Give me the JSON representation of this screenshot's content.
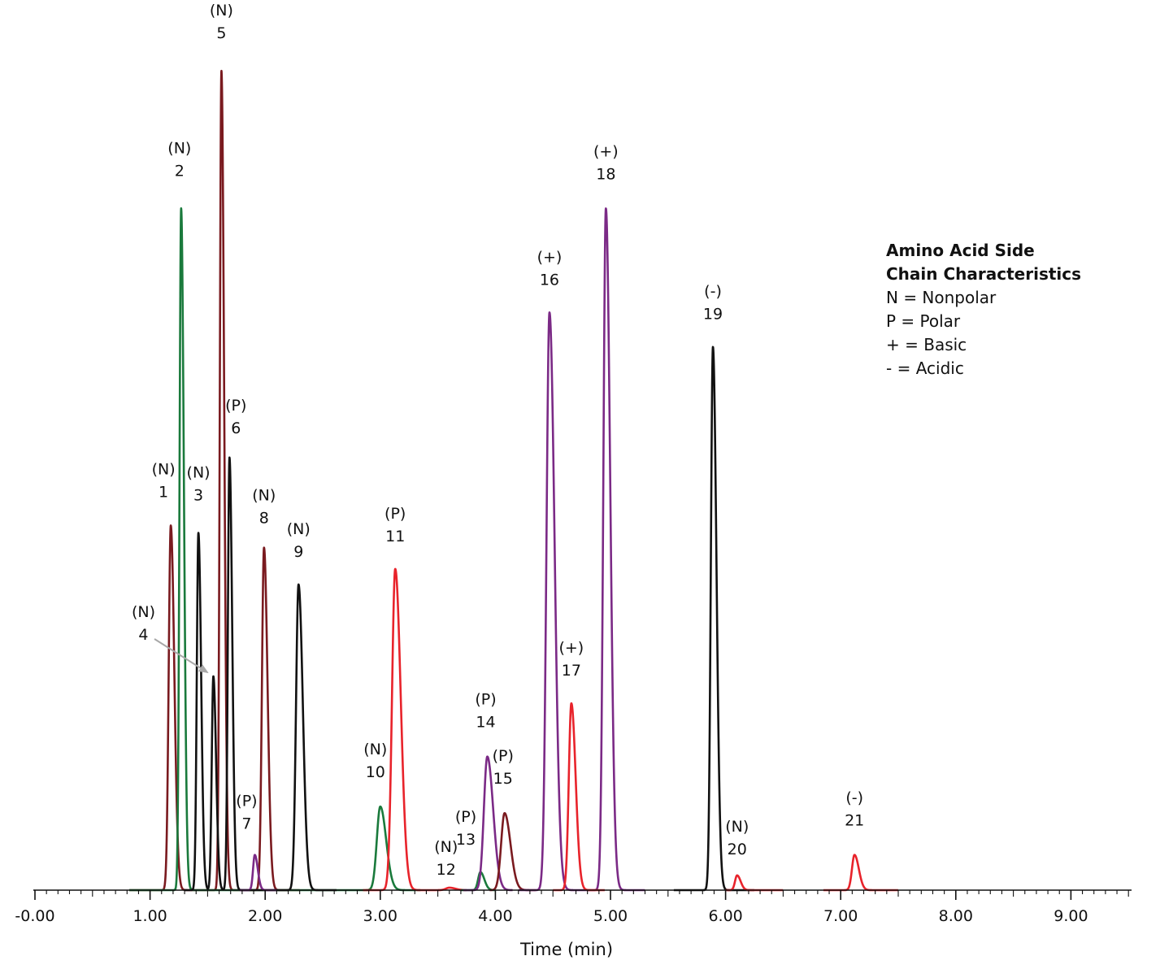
{
  "chart_data": {
    "type": "line",
    "xlabel": "Time (min)",
    "xlim": [
      -0.02,
      9.5
    ],
    "ylim": [
      0,
      100
    ],
    "x_ticks": [
      "-0.00",
      "1.00",
      "2.00",
      "3.00",
      "4.00",
      "5.00",
      "6.00",
      "7.00",
      "8.00",
      "9.00"
    ],
    "x_tick_values": [
      0,
      1,
      2,
      3,
      4,
      5,
      6,
      7,
      8,
      9
    ],
    "legend": {
      "title_lines": [
        "Amino Acid Side",
        "Chain Characteristics"
      ],
      "items": [
        "N = Nonpolar",
        "P = Polar",
        "+ = Basic",
        "- = Acidic"
      ],
      "placement": "top-right"
    },
    "colors": {
      "maroon": "#7a1a1f",
      "green": "#1a7a3c",
      "black": "#111111",
      "purple": "#7b2a86",
      "red": "#e8232b",
      "arrow": "#a8a8a8"
    },
    "series": [
      {
        "color": "maroon",
        "x_range": [
          0.82,
          2.3
        ],
        "peaks": [
          {
            "id": "1",
            "class": "N",
            "rt": 1.18,
            "height": 44.5,
            "width": 0.018
          },
          {
            "id": "5",
            "class": "N",
            "rt": 1.62,
            "height": 100,
            "width": 0.014
          },
          {
            "id": "8",
            "class": "N",
            "rt": 1.99,
            "height": 41.8,
            "width": 0.018
          }
        ]
      },
      {
        "color": "green",
        "x_range": [
          0.82,
          3.35
        ],
        "peaks": [
          {
            "id": "2",
            "class": "N",
            "rt": 1.27,
            "height": 83.2,
            "width": 0.014
          },
          {
            "id": "10",
            "class": "N",
            "rt": 3.0,
            "height": 10.2,
            "width": 0.03
          }
        ]
      },
      {
        "color": "black",
        "x_range": [
          1.3,
          2.62
        ],
        "peaks": [
          {
            "id": "3",
            "class": "N",
            "rt": 1.42,
            "height": 43.6,
            "width": 0.014
          },
          {
            "id": "4",
            "class": "N",
            "rt": 1.55,
            "height": 26.1,
            "width": 0.014
          },
          {
            "id": "6",
            "class": "P",
            "rt": 1.69,
            "height": 52.8,
            "width": 0.014
          },
          {
            "id": "9",
            "class": "N",
            "rt": 2.29,
            "height": 37.3,
            "width": 0.022
          }
        ]
      },
      {
        "color": "purple",
        "x_range": [
          1.78,
          2.1
        ],
        "peaks": [
          {
            "id": "7",
            "class": "P",
            "rt": 1.91,
            "height": 4.3,
            "width": 0.015
          }
        ]
      },
      {
        "color": "red",
        "x_range": [
          2.85,
          3.75
        ],
        "peaks": [
          {
            "id": "11",
            "class": "P",
            "rt": 3.13,
            "height": 39.2,
            "width": 0.028
          },
          {
            "id": "12",
            "class": "N",
            "rt": 3.6,
            "height": 0.3,
            "width": 0.03
          }
        ]
      },
      {
        "color": "green",
        "x_range": [
          3.7,
          4.0
        ],
        "peaks": [
          {
            "id": "13",
            "class": "P",
            "rt": 3.87,
            "height": 2.2,
            "width": 0.02
          }
        ]
      },
      {
        "color": "purple",
        "x_range": [
          3.72,
          4.15
        ],
        "peaks": [
          {
            "id": "14",
            "class": "P",
            "rt": 3.93,
            "height": 16.3,
            "width": 0.03
          }
        ]
      },
      {
        "color": "maroon",
        "x_range": [
          3.95,
          4.35
        ],
        "peaks": [
          {
            "id": "15",
            "class": "P",
            "rt": 4.08,
            "height": 9.4,
            "width": 0.03
          }
        ]
      },
      {
        "color": "purple",
        "x_range": [
          4.2,
          5.3
        ],
        "peaks": [
          {
            "id": "16",
            "class": "+",
            "rt": 4.47,
            "height": 70.5,
            "width": 0.026
          },
          {
            "id": "18",
            "class": "+",
            "rt": 4.96,
            "height": 83.2,
            "width": 0.022
          }
        ]
      },
      {
        "color": "red",
        "x_range": [
          4.5,
          4.95
        ],
        "peaks": [
          {
            "id": "17",
            "class": "+",
            "rt": 4.66,
            "height": 22.8,
            "width": 0.022
          }
        ]
      },
      {
        "color": "black",
        "x_range": [
          5.55,
          6.25
        ],
        "peaks": [
          {
            "id": "19",
            "class": "-",
            "rt": 5.89,
            "height": 66.3,
            "width": 0.018
          }
        ]
      },
      {
        "color": "red",
        "x_range": [
          6.0,
          6.5
        ],
        "peaks": [
          {
            "id": "20",
            "class": "N",
            "rt": 6.1,
            "height": 1.8,
            "width": 0.018
          }
        ]
      },
      {
        "color": "red",
        "x_range": [
          6.85,
          7.5
        ],
        "peaks": [
          {
            "id": "21",
            "class": "-",
            "rt": 7.12,
            "height": 4.3,
            "width": 0.022
          }
        ]
      }
    ],
    "peak_labels": [
      {
        "id": "1",
        "class_text": "(N)",
        "number_text": "1"
      },
      {
        "id": "2",
        "class_text": "(N)",
        "number_text": "2"
      },
      {
        "id": "3",
        "class_text": "(N)",
        "number_text": "3"
      },
      {
        "id": "4",
        "class_text": "(N)",
        "number_text": "4"
      },
      {
        "id": "5",
        "class_text": "(N)",
        "number_text": "5"
      },
      {
        "id": "6",
        "class_text": "(P)",
        "number_text": "6"
      },
      {
        "id": "7",
        "class_text": "(P)",
        "number_text": "7"
      },
      {
        "id": "8",
        "class_text": "(N)",
        "number_text": "8"
      },
      {
        "id": "9",
        "class_text": "(N)",
        "number_text": "9"
      },
      {
        "id": "10",
        "class_text": "(N)",
        "number_text": "10"
      },
      {
        "id": "11",
        "class_text": "(P)",
        "number_text": "11"
      },
      {
        "id": "12",
        "class_text": "(N)",
        "number_text": "12"
      },
      {
        "id": "13",
        "class_text": "(P)",
        "number_text": "13"
      },
      {
        "id": "14",
        "class_text": "(P)",
        "number_text": "14"
      },
      {
        "id": "15",
        "class_text": "(P)",
        "number_text": "15"
      },
      {
        "id": "16",
        "class_text": "(+)",
        "number_text": "16"
      },
      {
        "id": "17",
        "class_text": "(+)",
        "number_text": "17"
      },
      {
        "id": "18",
        "class_text": "(+)",
        "number_text": "18"
      },
      {
        "id": "19",
        "class_text": "(-)",
        "number_text": "19"
      },
      {
        "id": "20",
        "class_text": "(N)",
        "number_text": "20"
      },
      {
        "id": "21",
        "class_text": "(-)",
        "number_text": "21"
      }
    ]
  }
}
